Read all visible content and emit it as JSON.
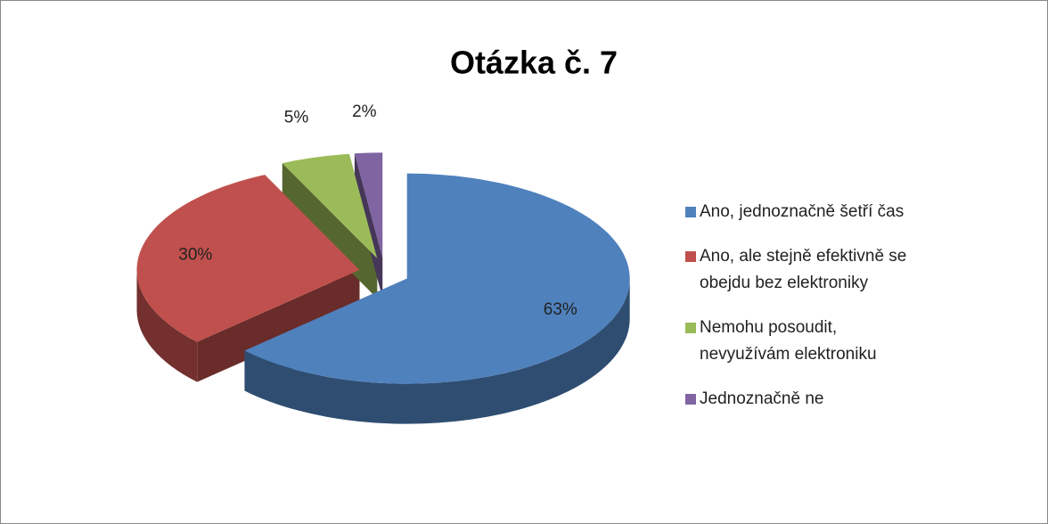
{
  "chart_data": {
    "type": "pie",
    "title": "Otázka č. 7",
    "categories": [
      "Ano, jednoznačně šetří čas",
      "Ano, ale stejně efektivně se obejdu bez elektroniky",
      "Nemohu posoudit, nevyužívám elektroniku",
      "Jednoznačně ne"
    ],
    "values": [
      63,
      30,
      5,
      2
    ],
    "value_labels": [
      "63%",
      "30%",
      "5%",
      "2%"
    ],
    "colors": [
      "#4f81bd",
      "#c0504d",
      "#9bbb59",
      "#8064a2"
    ],
    "legend": "right"
  }
}
